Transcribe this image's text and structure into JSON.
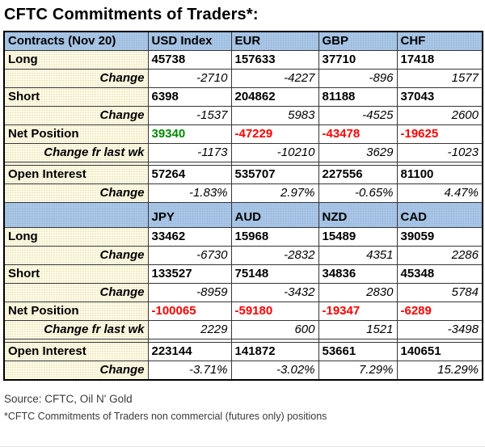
{
  "chart_data": {
    "type": "table",
    "title": "CFTC Commitments of Traders*:",
    "sections": [
      {
        "columns": [
          "Contracts (Nov 20)",
          "USD Index",
          "EUR",
          "GBP",
          "CHF"
        ],
        "rows": [
          {
            "label": "Long",
            "kind": "value",
            "values": [
              "45738",
              "157633",
              "37710",
              "17418"
            ]
          },
          {
            "label": "Change",
            "kind": "change",
            "values": [
              "-2710",
              "-4227",
              "-896",
              "1577"
            ]
          },
          {
            "label": "Short",
            "kind": "value",
            "values": [
              "6398",
              "204862",
              "81188",
              "37043"
            ]
          },
          {
            "label": "Change",
            "kind": "change",
            "values": [
              "-1537",
              "5983",
              "-4525",
              "2600"
            ]
          },
          {
            "label": "Net Position",
            "kind": "net",
            "values": [
              "39340",
              "-47229",
              "-43478",
              "-19625"
            ]
          },
          {
            "label": "Change fr last wk",
            "kind": "change",
            "values": [
              "-1173",
              "-10210",
              "3629",
              "-1023"
            ]
          },
          {
            "label": "",
            "kind": "spacer",
            "values": [
              "",
              "",
              "",
              ""
            ]
          },
          {
            "label": "Open Interest",
            "kind": "value",
            "values": [
              "57264",
              "535707",
              "227556",
              "81100"
            ]
          },
          {
            "label": "Change",
            "kind": "change",
            "values": [
              "-1.83%",
              "2.97%",
              "-0.65%",
              "4.47%"
            ]
          }
        ]
      },
      {
        "columns": [
          "",
          "JPY",
          "AUD",
          "NZD",
          "CAD"
        ],
        "rows": [
          {
            "label": "Long",
            "kind": "value",
            "values": [
              "33462",
              "15968",
              "15489",
              "39059"
            ]
          },
          {
            "label": "Change",
            "kind": "change",
            "values": [
              "-6730",
              "-2832",
              "4351",
              "2286"
            ]
          },
          {
            "label": "Short",
            "kind": "value",
            "values": [
              "133527",
              "75148",
              "34836",
              "45348"
            ]
          },
          {
            "label": "Change",
            "kind": "change",
            "values": [
              "-8959",
              "-3432",
              "2830",
              "5784"
            ]
          },
          {
            "label": "Net Position",
            "kind": "net",
            "values": [
              "-100065",
              "-59180",
              "-19347",
              "-6289"
            ]
          },
          {
            "label": "Change fr last wk",
            "kind": "change",
            "values": [
              "2229",
              "600",
              "1521",
              "-3498"
            ]
          },
          {
            "label": "",
            "kind": "spacer",
            "values": [
              "",
              "",
              "",
              ""
            ]
          },
          {
            "label": "Open Interest",
            "kind": "value",
            "values": [
              "223144",
              "141872",
              "53661",
              "140651"
            ]
          },
          {
            "label": "Change",
            "kind": "change",
            "values": [
              "-3.71%",
              "-3.02%",
              "7.29%",
              "15.29%"
            ]
          }
        ]
      }
    ]
  },
  "footer": {
    "source": "Source: CFTC, Oil N' Gold",
    "footnote": "*CFTC Commitments of Traders non commercial (futures only) positions"
  },
  "colors": {
    "header_bg": "#A9C7E7",
    "label_bg": "#FEFBE6",
    "positive": "#008A00",
    "negative": "#FF0000"
  }
}
